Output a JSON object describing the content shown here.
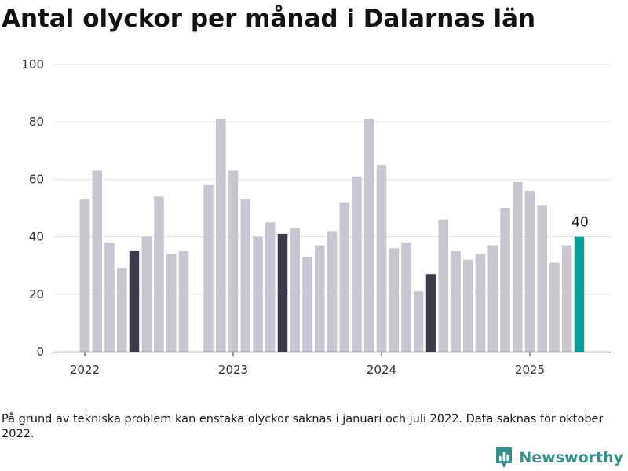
{
  "title": "Antal olyckor per månad i Dalarnas län",
  "footnote": "På grund av tekniska problem kan enstaka olyckor saknas i januari och juli 2022. Data saknas för oktober 2022.",
  "brand": "Newsworthy",
  "colors": {
    "default": "#c8c6d0",
    "highlight": "#3c3b4a",
    "latest": "#0f9e95",
    "brand": "#3a8f8a"
  },
  "chart_data": {
    "type": "bar",
    "title": "Antal olyckor per månad i Dalarnas län",
    "xlabel": "",
    "ylabel": "",
    "ylim": [
      0,
      100
    ],
    "y_ticks": [
      0,
      20,
      40,
      60,
      80,
      100
    ],
    "x_ticks": [
      "2022",
      "2023",
      "2024",
      "2025"
    ],
    "grid": true,
    "months": [
      "2022-01",
      "2022-02",
      "2022-03",
      "2022-04",
      "2022-05",
      "2022-06",
      "2022-07",
      "2022-08",
      "2022-09",
      "2022-10",
      "2022-11",
      "2022-12",
      "2023-01",
      "2023-02",
      "2023-03",
      "2023-04",
      "2023-05",
      "2023-06",
      "2023-07",
      "2023-08",
      "2023-09",
      "2023-10",
      "2023-11",
      "2023-12",
      "2024-01",
      "2024-02",
      "2024-03",
      "2024-04",
      "2024-05",
      "2024-06",
      "2024-07",
      "2024-08",
      "2024-09",
      "2024-10",
      "2024-11",
      "2024-12",
      "2025-01",
      "2025-02",
      "2025-03",
      "2025-04",
      "2025-05"
    ],
    "values": [
      53,
      63,
      38,
      29,
      35,
      40,
      54,
      34,
      35,
      null,
      58,
      81,
      63,
      53,
      40,
      45,
      41,
      43,
      33,
      37,
      42,
      52,
      61,
      81,
      65,
      36,
      38,
      21,
      27,
      46,
      35,
      32,
      34,
      37,
      50,
      59,
      56,
      51,
      31,
      37,
      40
    ],
    "highlight_months": [
      "2022-05",
      "2023-05",
      "2024-05"
    ],
    "latest_month": "2025-05",
    "data_labels": [
      {
        "month": "2025-05",
        "text": "40"
      }
    ]
  }
}
